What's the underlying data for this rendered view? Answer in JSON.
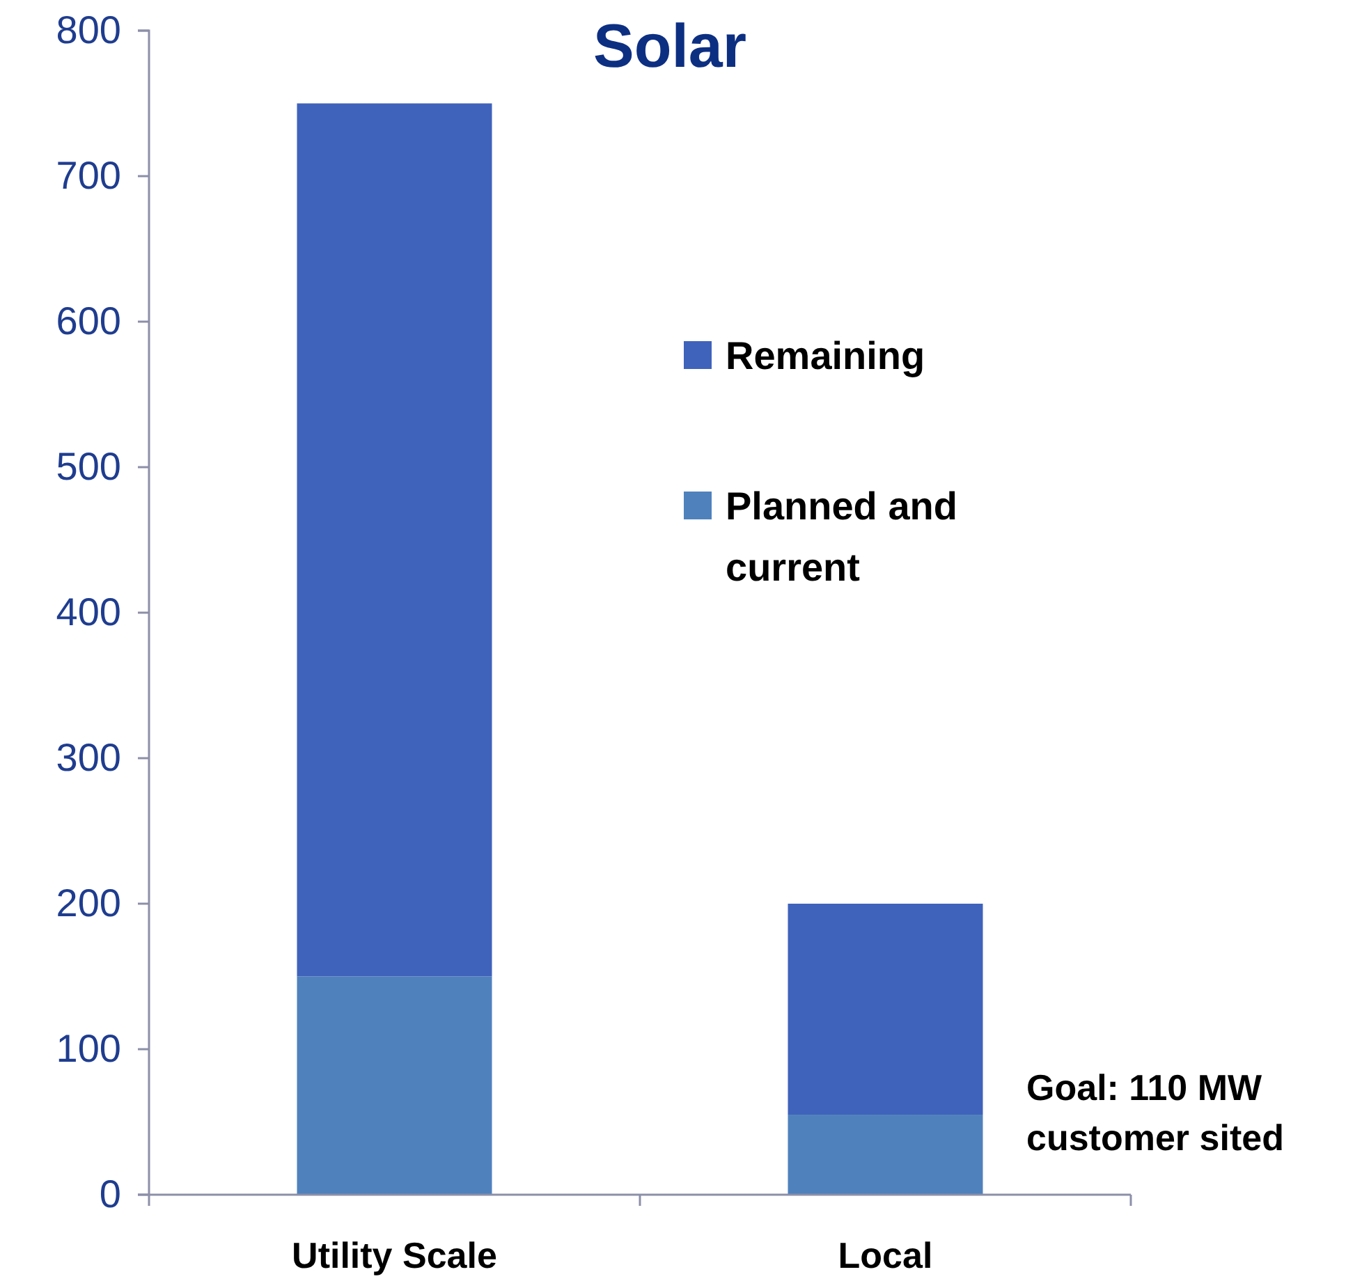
{
  "chart_data": {
    "type": "bar",
    "title": "Solar",
    "categories": [
      "Utility Scale",
      "Local"
    ],
    "stacked": true,
    "series": [
      {
        "name": "Planned and current",
        "color": "#4f81bd",
        "values": [
          150,
          55
        ]
      },
      {
        "name": "Remaining",
        "color": "#3f62bb",
        "values": [
          600,
          145
        ]
      }
    ],
    "ylim": [
      0,
      800
    ],
    "yticks": [
      0,
      100,
      200,
      300,
      400,
      500,
      600,
      700,
      800
    ],
    "grid": false,
    "legend": "right",
    "annotations": [
      "Goal: 110 MW customer sited"
    ]
  }
}
